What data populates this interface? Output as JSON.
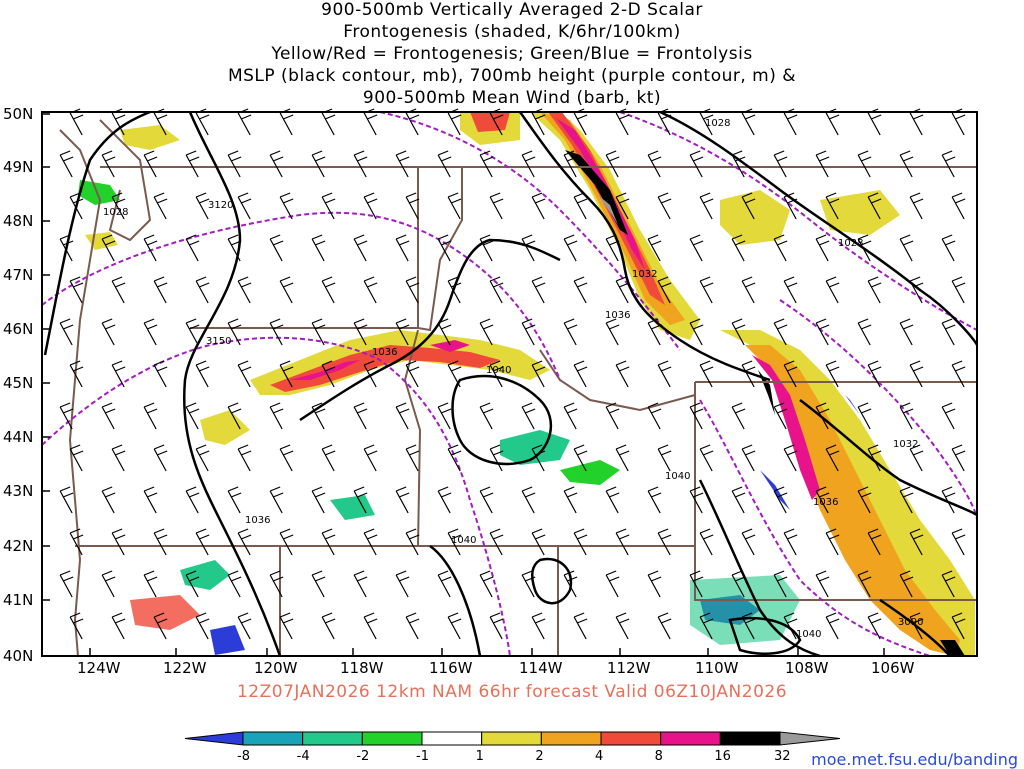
{
  "title_lines": [
    "900-500mb Vertically Averaged 2-D Scalar",
    "Frontogenesis (shaded, K/6hr/100km)",
    "Yellow/Red = Frontogenesis;  Green/Blue = Frontolysis",
    "MSLP (black contour, mb), 700mb height (purple contour, m) &",
    "900-500mb Mean Wind (barb, kt)"
  ],
  "lat_labels": [
    "50N",
    "49N",
    "48N",
    "47N",
    "46N",
    "45N",
    "44N",
    "43N",
    "42N",
    "41N",
    "40N"
  ],
  "lon_labels": [
    "124W",
    "122W",
    "120W",
    "118W",
    "116W",
    "114W",
    "112W",
    "110W",
    "108W",
    "106W"
  ],
  "contour_labels": {
    "mslp": [
      "1028",
      "1028",
      "1032",
      "1036",
      "1036",
      "1040",
      "1032",
      "1036",
      "1040",
      "1036",
      "1040",
      "1040",
      "1028"
    ],
    "height": [
      "3120",
      "3150",
      "3090"
    ]
  },
  "subtitle": "12Z07JAN2026 12km NAM 66hr forecast Valid 06Z10JAN2026",
  "colorbar": {
    "labels": [
      "-8",
      "-4",
      "-2",
      "-1",
      "1",
      "2",
      "4",
      "8",
      "16",
      "32"
    ],
    "colors": [
      "#2b3cd8",
      "#1aa3b8",
      "#22c98a",
      "#22d22a",
      "#ffffff",
      "#e3d93a",
      "#f0a31f",
      "#f04a3a",
      "#e8138a",
      "#000000",
      "#9a9a9a"
    ]
  },
  "credit": "moe.met.fsu.edu/banding",
  "colors": {
    "state_border": "#7a5a4e",
    "mslp_contour": "#000000",
    "height_contour": "#a21cc2",
    "subtitle": "#e8705a"
  }
}
